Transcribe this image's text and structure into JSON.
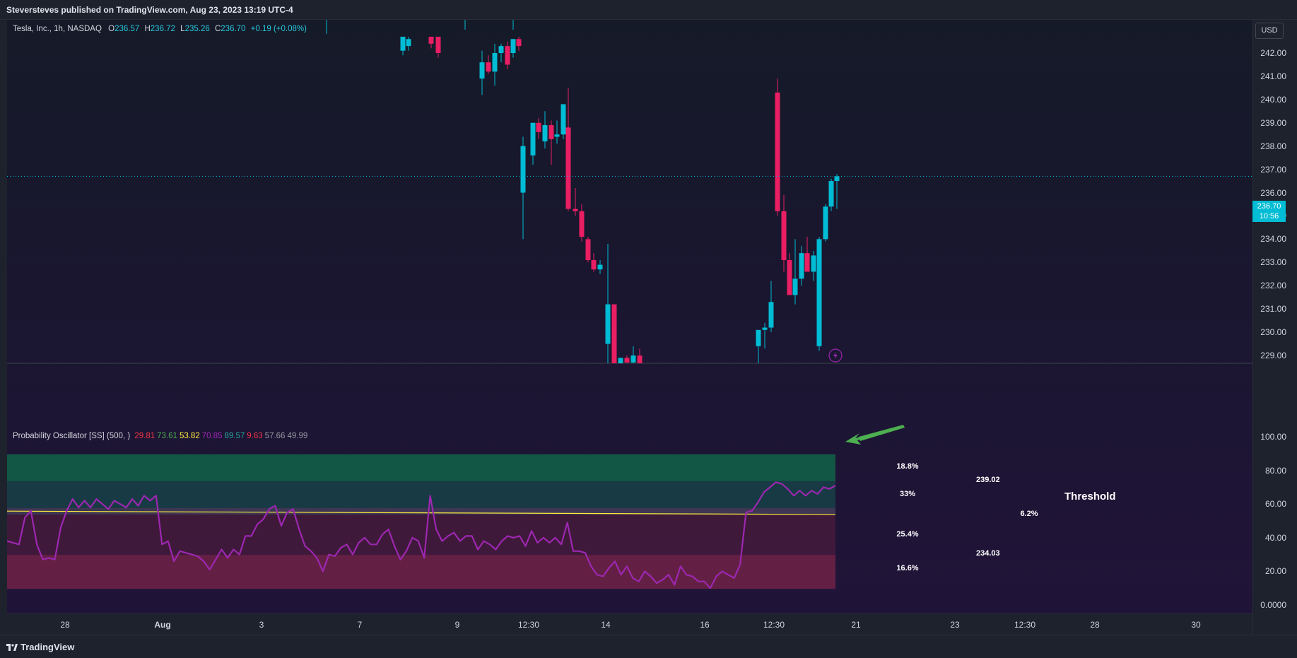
{
  "header": {
    "publish_text": "Steversteves published on TradingView.com, Aug 23, 2023 13:19 UTC-4"
  },
  "price_legend": {
    "symbol": "Tesla, Inc., 1h, NASDAQ",
    "open_label": "O",
    "open": "236.57",
    "high_label": "H",
    "high": "236.72",
    "low_label": "L",
    "low": "235.26",
    "close_label": "C",
    "close": "236.70",
    "change": "+0.19 (+0.08%)"
  },
  "osc_legend": {
    "name": "Probability Oscillator [SS] (500, )",
    "values": [
      {
        "text": "29.81",
        "color": "#f23645"
      },
      {
        "text": "73.61",
        "color": "#4caf50"
      },
      {
        "text": "53.82",
        "color": "#ffeb3b"
      },
      {
        "text": "70.85",
        "color": "#9c27b0"
      },
      {
        "text": "89.57",
        "color": "#26a69a"
      },
      {
        "text": "9.63",
        "color": "#f23645"
      },
      {
        "text": "57.66",
        "color": "#9598a1"
      },
      {
        "text": "49.99",
        "color": "#9598a1"
      }
    ]
  },
  "currency_button": "USD",
  "last_price_tag": {
    "price": "236.70",
    "countdown": "10:56"
  },
  "price_axis": [
    "242.00",
    "241.00",
    "240.00",
    "239.00",
    "238.00",
    "237.00",
    "236.00",
    "235.00",
    "234.00",
    "233.00",
    "232.00",
    "231.00",
    "230.00",
    "229.00"
  ],
  "osc_axis": [
    "100.00",
    "80.00",
    "60.00",
    "40.00",
    "20.00",
    "0.0000"
  ],
  "time_axis": [
    {
      "label": "28",
      "bold": false
    },
    {
      "label": "Aug",
      "bold": true
    },
    {
      "label": "3",
      "bold": false
    },
    {
      "label": "7",
      "bold": false
    },
    {
      "label": "9",
      "bold": false
    },
    {
      "label": "12:30",
      "bold": false
    },
    {
      "label": "14",
      "bold": false
    },
    {
      "label": "16",
      "bold": false
    },
    {
      "label": "12:30",
      "bold": false
    },
    {
      "label": "21",
      "bold": false
    },
    {
      "label": "23",
      "bold": false
    },
    {
      "label": "12:30",
      "bold": false
    },
    {
      "label": "28",
      "bold": false
    },
    {
      "label": "30",
      "bold": false
    }
  ],
  "band_labels": [
    "18.8%",
    "33%",
    "6.2%",
    "25.4%",
    "16.6%"
  ],
  "price_markers": [
    "239.02",
    "234.03"
  ],
  "annotation": {
    "text": "Threshold"
  },
  "footer": {
    "brand": "TradingView"
  },
  "colors": {
    "up": "#00bcd4",
    "down": "#e91e63",
    "oscillator": "#9c27b0",
    "threshold_line": "#ffeb3b",
    "arrow": "#4caf50"
  },
  "chart_data": {
    "type": "candlestick",
    "price_range": [
      228.8,
      242.6
    ],
    "candles_ohlc": [
      [
        242.1,
        242.7,
        241.9,
        242.7
      ],
      [
        242.3,
        242.7,
        242.1,
        242.6
      ],
      [
        242.7,
        242.7,
        242.2,
        242.4
      ],
      [
        242.7,
        242.7,
        241.8,
        242.0
      ],
      [
        240.9,
        242.1,
        240.2,
        241.6
      ],
      [
        241.6,
        241.9,
        241.1,
        241.2
      ],
      [
        241.2,
        242.4,
        240.6,
        242.0
      ],
      [
        242.0,
        242.4,
        241.6,
        242.3
      ],
      [
        242.3,
        242.5,
        241.3,
        241.5
      ],
      [
        242.0,
        242.6,
        241.8,
        242.6
      ],
      [
        242.6,
        242.7,
        242.1,
        242.3
      ],
      [
        236.0,
        238.4,
        234.0,
        238.0
      ],
      [
        237.6,
        239.0,
        237.2,
        239.0
      ],
      [
        239.0,
        239.2,
        238.3,
        238.6
      ],
      [
        238.2,
        239.5,
        237.9,
        238.9
      ],
      [
        238.9,
        239.1,
        237.2,
        238.3
      ],
      [
        238.4,
        239.1,
        238.1,
        238.5
      ],
      [
        238.5,
        239.8,
        238.3,
        239.8
      ],
      [
        238.8,
        240.5,
        235.2,
        235.3
      ],
      [
        235.3,
        236.2,
        235.0,
        235.2
      ],
      [
        235.2,
        235.5,
        233.9,
        234.1
      ],
      [
        234.0,
        234.1,
        233.0,
        233.1
      ],
      [
        233.1,
        233.4,
        232.6,
        232.7
      ],
      [
        232.7,
        233.1,
        232.5,
        232.9
      ],
      [
        229.5,
        233.8,
        227.5,
        231.2
      ],
      [
        231.2,
        231.2,
        228.0,
        228.5
      ],
      [
        228.5,
        228.9,
        228.0,
        228.9
      ],
      [
        228.9,
        229.0,
        228.0,
        228.7
      ],
      [
        228.7,
        229.4,
        228.3,
        229.0
      ],
      [
        229.0,
        229.3,
        228.1,
        228.6
      ],
      [
        229.4,
        229.8,
        228.5,
        230.1
      ],
      [
        230.1,
        230.4,
        229.3,
        230.2
      ],
      [
        230.2,
        232.2,
        230.0,
        231.3
      ],
      [
        240.3,
        240.9,
        235.0,
        235.2
      ],
      [
        235.2,
        235.9,
        232.6,
        233.1
      ],
      [
        233.1,
        233.4,
        231.6,
        231.6
      ],
      [
        231.6,
        234.0,
        231.2,
        232.3
      ],
      [
        232.3,
        233.7,
        232.0,
        233.4
      ],
      [
        233.4,
        234.1,
        232.6,
        232.6
      ],
      [
        232.6,
        233.5,
        232.2,
        233.3
      ],
      [
        229.4,
        234.1,
        229.2,
        234.0
      ],
      [
        234.0,
        235.5,
        233.9,
        235.4
      ],
      [
        235.4,
        236.6,
        235.2,
        236.5
      ],
      [
        236.5,
        236.8,
        235.3,
        236.7
      ]
    ],
    "last_price": 236.7,
    "oscillator": {
      "range": [
        0,
        100
      ],
      "series": [
        38,
        37,
        36,
        52,
        56,
        36,
        27,
        28,
        27,
        46,
        56,
        63,
        58,
        62,
        58,
        63,
        60,
        57,
        62,
        60,
        58,
        63,
        59,
        65,
        62,
        65,
        36,
        38,
        26,
        32,
        31,
        30,
        29,
        26,
        21,
        27,
        33,
        28,
        33,
        30,
        41,
        41,
        48,
        51,
        57,
        59,
        47,
        55,
        57,
        45,
        35,
        32,
        28,
        20,
        30,
        29,
        34,
        36,
        30,
        37,
        40,
        36,
        36,
        42,
        45,
        35,
        27,
        32,
        40,
        38,
        28,
        65,
        45,
        38,
        41,
        43,
        38,
        41,
        41,
        33,
        38,
        36,
        33,
        38,
        41,
        40,
        41,
        35,
        44,
        37,
        40,
        37,
        40,
        36,
        49,
        32,
        32,
        31,
        23,
        18,
        17,
        22,
        26,
        18,
        23,
        16,
        14,
        20,
        17,
        13,
        15,
        18,
        12,
        23,
        18,
        17,
        14,
        14,
        10,
        17,
        20,
        18,
        16,
        24,
        55,
        56,
        61,
        67,
        70,
        73,
        72,
        69,
        65,
        68,
        65,
        68,
        66,
        70,
        69,
        71
      ],
      "threshold_line": [
        55.8,
        53.8
      ],
      "bands": {
        "top": [
          73.6,
          89.6
        ],
        "upper": [
          57.7,
          73.6
        ],
        "mid_high": [
          53.8,
          57.7
        ],
        "mid_low": [
          29.8,
          53.8
        ],
        "bottom": [
          9.6,
          29.8
        ]
      }
    }
  }
}
